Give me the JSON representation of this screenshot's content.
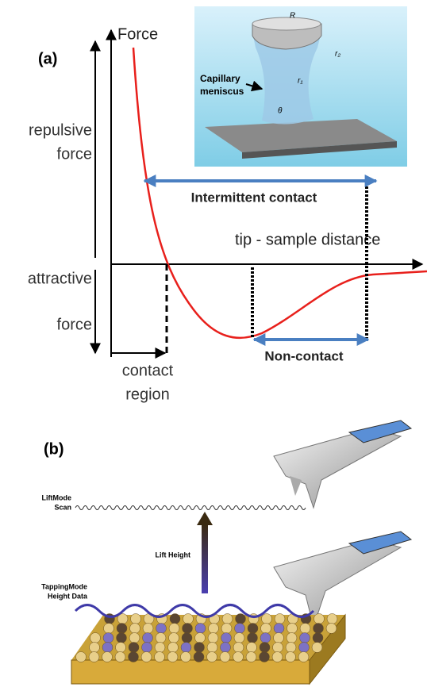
{
  "panel_a": {
    "label": "(a)",
    "y_axis_label": "Force",
    "repulsive": [
      "repulsive",
      "force"
    ],
    "attractive": [
      "attractive",
      "force"
    ],
    "x_axis_label": "tip - sample distance",
    "intermittent": "Intermittent contact",
    "non_contact": "Non-contact",
    "contact_region": [
      "contact",
      "region"
    ],
    "inset": {
      "capillary": [
        "Capillary",
        "meniscus"
      ],
      "R": "R",
      "r1": "r₁",
      "r2": "r₂",
      "theta": "θ"
    }
  },
  "panel_b": {
    "label": "(b)",
    "liftmode": [
      "LiftMode",
      "Scan"
    ],
    "lift_height": "Lift Height",
    "tapping": [
      "TappingMode",
      "Height Data"
    ]
  }
}
